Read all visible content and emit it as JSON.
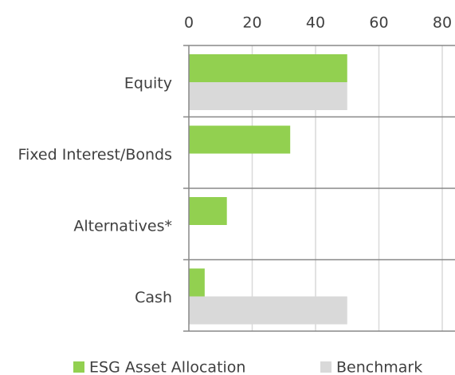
{
  "chart_data": {
    "type": "hbar",
    "categories": [
      "Equity",
      "Fixed Interest/Bonds",
      "Alternatives*",
      "Cash"
    ],
    "series": [
      {
        "name": "ESG Asset Allocation",
        "color": "#92d050",
        "values": [
          50,
          32,
          12,
          5
        ]
      },
      {
        "name": "Benchmark",
        "color": "#d9d9d9",
        "values": [
          50,
          0,
          0,
          50
        ]
      }
    ],
    "xlim": [
      0,
      80
    ],
    "xticks": [
      0,
      20,
      40,
      60,
      80
    ],
    "grid": true,
    "legend": "bottom"
  }
}
